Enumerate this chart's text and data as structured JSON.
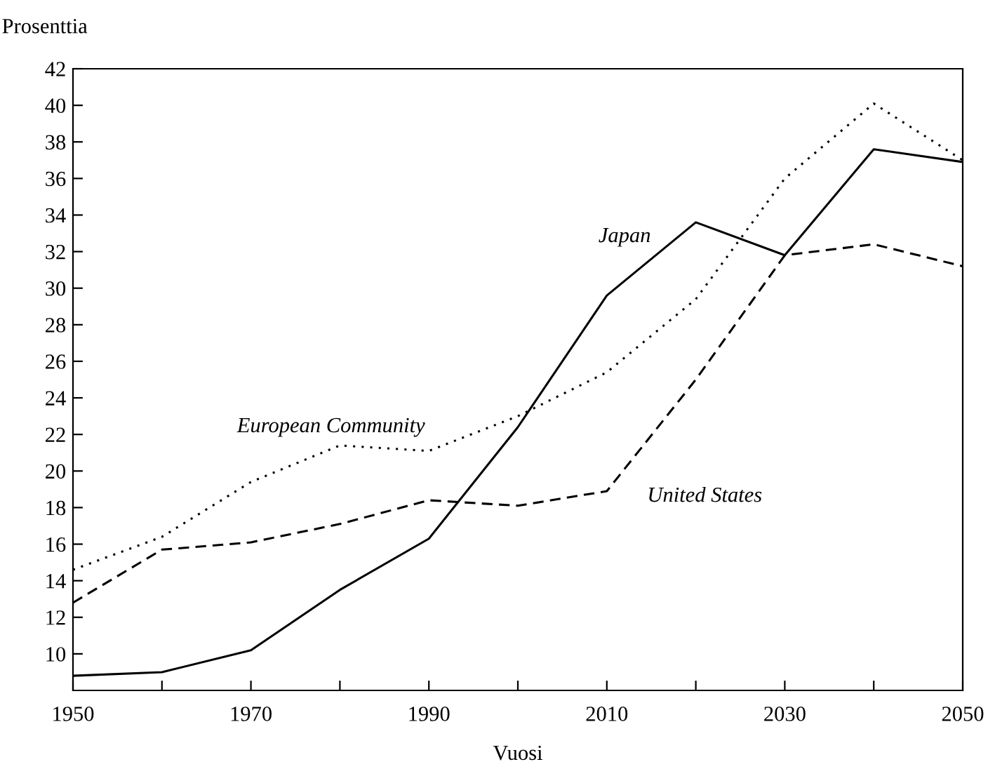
{
  "chart_data": {
    "type": "line",
    "xlabel": "Vuosi",
    "ylabel": "Prosenttia",
    "x": [
      1950,
      1960,
      1970,
      1980,
      1990,
      2000,
      2010,
      2020,
      2030,
      2040,
      2050
    ],
    "series": [
      {
        "name": "Japan",
        "color": "#000000",
        "line_style": "solid",
        "values": [
          8.8,
          9.0,
          10.2,
          13.5,
          16.3,
          22.4,
          29.6,
          33.6,
          31.8,
          37.6,
          36.9
        ]
      },
      {
        "name": "United States",
        "color": "#000000",
        "line_style": "dashed",
        "values": [
          12.8,
          15.7,
          16.1,
          17.1,
          18.4,
          18.1,
          18.9,
          25.0,
          31.8,
          32.4,
          31.2
        ]
      },
      {
        "name": "European Community",
        "color": "#000000",
        "line_style": "dotted",
        "values": [
          14.6,
          16.4,
          19.4,
          21.4,
          21.1,
          23.0,
          25.4,
          29.4,
          36.0,
          40.1,
          37.0
        ]
      }
    ],
    "xlim": [
      1950,
      2050
    ],
    "xticks": [
      1950,
      {
        "value": 1960,
        "label": null
      },
      1970,
      {
        "value": 1980,
        "label": null
      },
      1990,
      {
        "value": 2000,
        "label": null
      },
      2010,
      {
        "value": 2020,
        "label": null
      },
      2030,
      {
        "value": 2040,
        "label": null
      },
      2050
    ],
    "ylim": [
      8,
      42
    ],
    "yticks": [
      10,
      12,
      14,
      16,
      18,
      20,
      22,
      24,
      26,
      28,
      30,
      32,
      34,
      36,
      38,
      40,
      42
    ],
    "grid": false,
    "legend": false,
    "marker": "none"
  }
}
